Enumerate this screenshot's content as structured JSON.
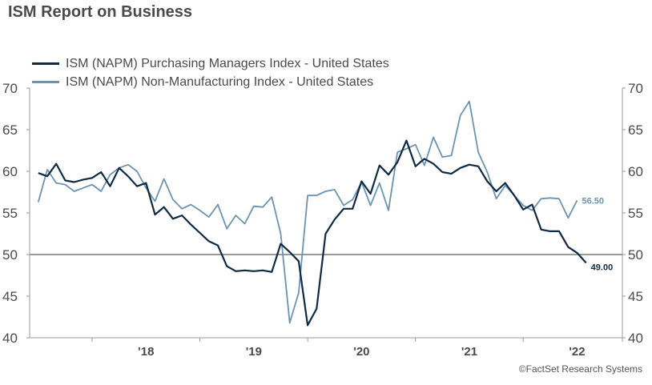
{
  "title": "ISM Report on Business",
  "credit": "©FactSet Research Systems",
  "colors": {
    "pmi": "#0f2a44",
    "nmi": "#6b94b4",
    "axis": "#9a9a9a",
    "ref": "#9a9a9a",
    "text": "#4a4a4a"
  },
  "chart_data": {
    "type": "line",
    "title": "ISM Report on Business",
    "xlabel": "",
    "ylabel": "",
    "ylim": [
      40,
      70
    ],
    "yticks": [
      40,
      45,
      50,
      55,
      60,
      65,
      70
    ],
    "xticks": [
      {
        "label": "'18",
        "x": 2018
      },
      {
        "label": "'19",
        "x": 2019
      },
      {
        "label": "'20",
        "x": 2020
      },
      {
        "label": "'21",
        "x": 2021
      },
      {
        "label": "'22",
        "x": 2022
      }
    ],
    "xlim": [
      2017.42,
      2022.92
    ],
    "reference_line": 50,
    "series": [
      {
        "key": "pmi",
        "name": "ISM (NAPM) Purchasing Managers Index - United States",
        "start": 2017.5,
        "step": 0.08333,
        "values": [
          59.8,
          59.4,
          60.9,
          58.9,
          58.7,
          59.0,
          59.2,
          59.9,
          58.2,
          60.4,
          59.4,
          58.2,
          58.6,
          54.8,
          55.7,
          54.3,
          54.7,
          53.6,
          52.6,
          51.6,
          51.1,
          48.6,
          48.0,
          48.1,
          48.0,
          48.1,
          47.9,
          51.3,
          50.3,
          49.2,
          41.5,
          43.5,
          52.5,
          54.2,
          55.5,
          55.5,
          58.8,
          57.3,
          60.7,
          59.6,
          61.1,
          63.7,
          60.6,
          61.5,
          60.9,
          59.9,
          59.7,
          60.4,
          60.8,
          60.6,
          58.8,
          57.6,
          58.6,
          57.1,
          55.4,
          56.0,
          53.0,
          52.8,
          52.8,
          50.9,
          50.2,
          49.0
        ],
        "last_label": "49.00"
      },
      {
        "key": "nmi",
        "name": "ISM (NAPM) Non-Manufacturing Index - United States",
        "start": 2017.5,
        "step": 0.08333,
        "values": [
          56.3,
          60.2,
          58.6,
          58.4,
          57.6,
          58.0,
          58.4,
          57.6,
          59.6,
          60.4,
          60.8,
          60.0,
          58.0,
          56.4,
          59.1,
          56.6,
          55.5,
          56.0,
          55.3,
          54.5,
          56.0,
          53.1,
          54.7,
          53.7,
          55.8,
          55.7,
          56.9,
          52.5,
          41.8,
          45.4,
          57.1,
          57.1,
          57.6,
          57.8,
          55.9,
          56.6,
          58.7,
          55.9,
          58.6,
          55.3,
          62.3,
          62.7,
          63.2,
          60.7,
          64.1,
          61.7,
          61.9,
          66.7,
          68.4,
          62.3,
          59.9,
          56.7,
          58.3,
          57.1,
          55.9,
          55.3,
          56.7,
          56.8,
          56.7,
          54.4,
          56.5
        ],
        "last_label": "56.50"
      }
    ]
  }
}
